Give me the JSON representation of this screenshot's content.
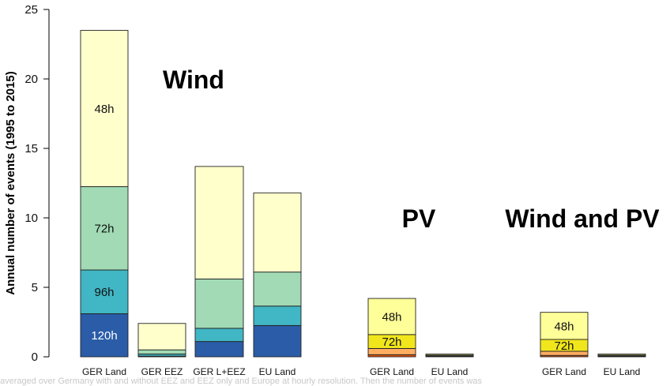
{
  "chart_data": {
    "type": "bar",
    "stacked": true,
    "ylabel": "Annual number of events (1995 to 2015)",
    "ylim": [
      0,
      25
    ],
    "yticks": [
      0,
      5,
      10,
      15,
      20,
      25
    ],
    "grid": false,
    "groups": [
      {
        "title": "Wind",
        "bars": [
          {
            "category": "GER Land",
            "segments": [
              {
                "name": "120h",
                "value": 3.1,
                "color": "#2a5ca8",
                "label": "120h"
              },
              {
                "name": "96h",
                "value": 3.15,
                "color": "#41b6c4",
                "label": "96h"
              },
              {
                "name": "72h",
                "value": 6.0,
                "color": "#a1dab4",
                "label": "72h"
              },
              {
                "name": "48h",
                "value": 11.25,
                "color": "#ffffcc",
                "label": "48h"
              }
            ]
          },
          {
            "category": "GER EEZ",
            "segments": [
              {
                "name": "120h",
                "value": 0.05,
                "color": "#2a5ca8"
              },
              {
                "name": "96h",
                "value": 0.15,
                "color": "#41b6c4"
              },
              {
                "name": "72h",
                "value": 0.3,
                "color": "#a1dab4"
              },
              {
                "name": "48h",
                "value": 1.9,
                "color": "#ffffcc"
              }
            ]
          },
          {
            "category": "GER L+EEZ",
            "segments": [
              {
                "name": "120h",
                "value": 1.1,
                "color": "#2a5ca8"
              },
              {
                "name": "96h",
                "value": 0.95,
                "color": "#41b6c4"
              },
              {
                "name": "72h",
                "value": 3.55,
                "color": "#a1dab4"
              },
              {
                "name": "48h",
                "value": 8.1,
                "color": "#ffffcc"
              }
            ]
          },
          {
            "category": "EU Land",
            "segments": [
              {
                "name": "120h",
                "value": 2.25,
                "color": "#2a5ca8"
              },
              {
                "name": "96h",
                "value": 1.4,
                "color": "#41b6c4"
              },
              {
                "name": "72h",
                "value": 2.45,
                "color": "#a1dab4"
              },
              {
                "name": "48h",
                "value": 5.7,
                "color": "#ffffcc"
              }
            ]
          }
        ]
      },
      {
        "title": "PV",
        "bars": [
          {
            "category": "GER Land",
            "segments": [
              {
                "name": "120h",
                "value": 0.15,
                "color": "#e6550d"
              },
              {
                "name": "96h",
                "value": 0.45,
                "color": "#fdae61"
              },
              {
                "name": "72h",
                "value": 1.0,
                "color": "#f1e61c",
                "label": "72h"
              },
              {
                "name": "48h",
                "value": 2.6,
                "color": "#ffff99",
                "label": "48h"
              }
            ]
          },
          {
            "category": "EU Land",
            "segments": [
              {
                "name": "120h",
                "value": 0.03,
                "color": "#e6550d"
              },
              {
                "name": "96h",
                "value": 0.04,
                "color": "#fdae61"
              },
              {
                "name": "72h",
                "value": 0.05,
                "color": "#f1e61c"
              },
              {
                "name": "48h",
                "value": 0.08,
                "color": "#ffff99"
              }
            ]
          }
        ]
      },
      {
        "title": "Wind and PV",
        "bars": [
          {
            "category": "GER Land",
            "segments": [
              {
                "name": "120h",
                "value": 0.1,
                "color": "#e6550d"
              },
              {
                "name": "96h",
                "value": 0.3,
                "color": "#fdae61"
              },
              {
                "name": "72h",
                "value": 0.85,
                "color": "#f1e61c",
                "label": "72h"
              },
              {
                "name": "48h",
                "value": 1.95,
                "color": "#ffff99",
                "label": "48h"
              }
            ]
          },
          {
            "category": "EU Land",
            "segments": [
              {
                "name": "120h",
                "value": 0.03,
                "color": "#e6550d"
              },
              {
                "name": "96h",
                "value": 0.04,
                "color": "#fdae61"
              },
              {
                "name": "72h",
                "value": 0.05,
                "color": "#f1e61c"
              },
              {
                "name": "48h",
                "value": 0.08,
                "color": "#ffff99"
              }
            ]
          }
        ]
      }
    ]
  },
  "caption": "averaged over Germany with and without EEZ and EEZ only and Europe at hourly resolution. Then the number of events was"
}
